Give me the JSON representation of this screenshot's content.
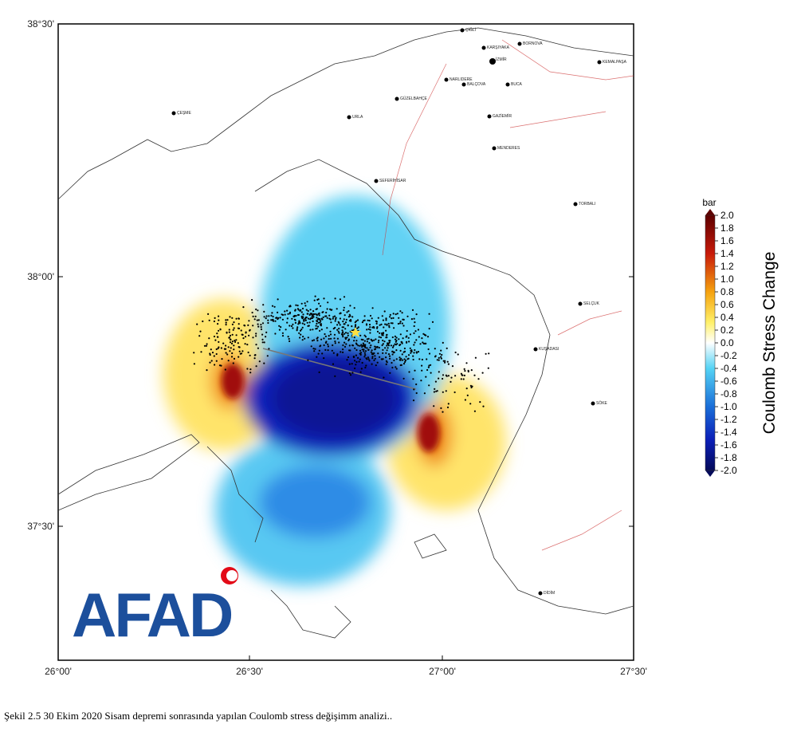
{
  "map": {
    "lat_labels": [
      "38°30'",
      "38°00'",
      "37°30'"
    ],
    "lon_labels": [
      "26°00'",
      "26°30'",
      "27°00'",
      "27°30'"
    ],
    "cities": [
      "ÇİĞLİ",
      "KARŞIYAKA",
      "BORNOVA",
      "İZMİR",
      "KEMALPAŞA",
      "NARLIDERE",
      "BALÇOVA",
      "BUCA",
      "GÜZELBAHÇE",
      "ÇEŞME",
      "URLA",
      "GAZİEMİR",
      "MENDERES",
      "SEFERİHİSAR",
      "TORBALI",
      "SELÇUK",
      "KUŞADASI",
      "SÖKE",
      "DİDİM"
    ],
    "logo": "AFAD"
  },
  "colorbar": {
    "unit": "bar",
    "title": "Coulomb Stress Change",
    "ticks": [
      "2.0",
      "1.8",
      "1.6",
      "1.4",
      "1.2",
      "1.0",
      "0.8",
      "0.6",
      "0.4",
      "0.2",
      "0.0",
      "-0.2",
      "-0.4",
      "-0.6",
      "-0.8",
      "-1.0",
      "-1.2",
      "-1.4",
      "-1.6",
      "-1.8",
      "-2.0"
    ]
  },
  "caption": "Şekil 2.5 30 Ekim 2020 Sisam depremi sonrasında yapılan Coulomb stress değişimm analizi.."
}
